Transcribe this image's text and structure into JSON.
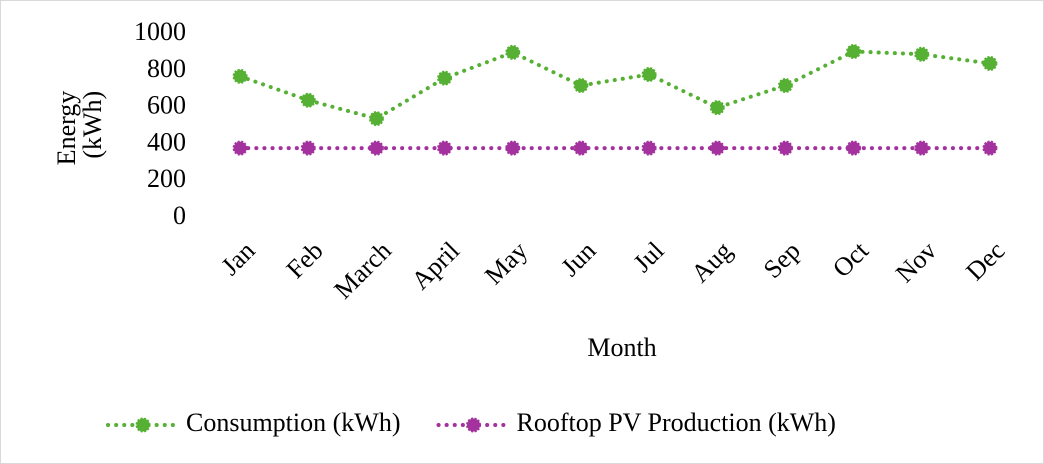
{
  "chart_data": {
    "type": "line",
    "x_label": "Month",
    "y_label": "Energy (kWh)",
    "categories": [
      "Jan",
      "Feb",
      "March",
      "April",
      "May",
      "Jun",
      "Jul",
      "Aug",
      "Sep",
      "Oct",
      "Nov",
      "Dec"
    ],
    "series": [
      {
        "name": "Consumption (kWh)",
        "color": "#55b033",
        "values": [
          770,
          640,
          540,
          760,
          900,
          720,
          780,
          600,
          720,
          905,
          890,
          840
        ]
      },
      {
        "name": "Rooftop PV Production (kWh)",
        "color": "#a3329e",
        "values": [
          380,
          380,
          380,
          380,
          380,
          380,
          380,
          380,
          380,
          380,
          380,
          380
        ]
      }
    ],
    "ylim": [
      0,
      1000
    ],
    "yticks": [
      0,
      200,
      400,
      600,
      800,
      1000
    ],
    "grid": false,
    "legend": "bottom"
  }
}
